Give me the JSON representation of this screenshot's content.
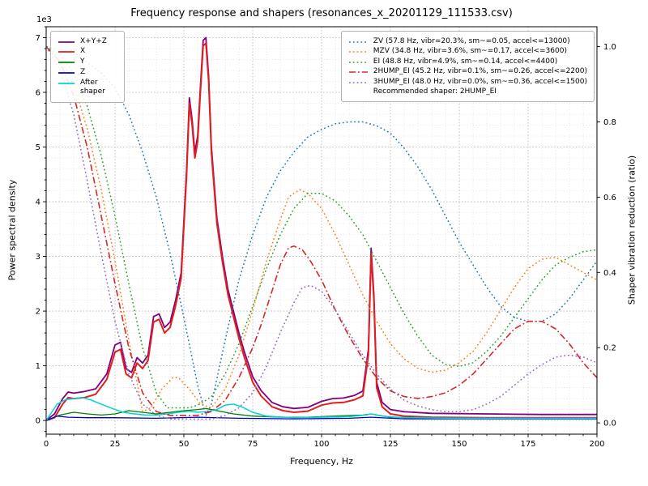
{
  "figure": {
    "title": "Frequency response and shapers (resonances_x_20201129_111533.csv)",
    "xlabel": "Frequency, Hz",
    "ylabel_left": "Power spectral density",
    "ylabel_right": "Shaper vibration reduction (ratio)",
    "offset_label": "1e3"
  },
  "chart_data": {
    "type": "line",
    "title": "Frequency response and shapers (resonances_x_20201129_111533.csv)",
    "xlabel": "Frequency, Hz",
    "ylabel": "Power spectral density",
    "ylabel_right": "Shaper vibration reduction (ratio)",
    "xlim": [
      0,
      200
    ],
    "ylim_left": [
      -250,
      7200
    ],
    "ylim_right": [
      -0.03,
      1.053
    ],
    "xticks": {
      "values": [
        0,
        25,
        50,
        75,
        100,
        125,
        150,
        175,
        200
      ],
      "labels": [
        "0",
        "25",
        "50",
        "75",
        "100",
        "125",
        "150",
        "175",
        "200"
      ]
    },
    "yticks_left": {
      "values": [
        0,
        1000,
        2000,
        3000,
        4000,
        5000,
        6000,
        7000
      ],
      "labels": [
        "0",
        "1",
        "2",
        "3",
        "4",
        "5",
        "6",
        "7"
      ],
      "scale_label": "1e3"
    },
    "yticks_right": {
      "values": [
        0,
        0.2,
        0.4,
        0.6,
        0.8,
        1.0
      ],
      "labels": [
        "0.0",
        "0.2",
        "0.4",
        "0.6",
        "0.8",
        "1.0"
      ]
    },
    "grid": {
      "major": true,
      "minor": true,
      "x_minor_step": 5,
      "y_minor_step": 200
    },
    "annotation": "Recommended shaper: 2HUMP_EI",
    "psd_series": [
      {
        "name": "x-y-z",
        "label": "X+Y+Z",
        "color": "#800080",
        "style": "solid",
        "width": 1.8,
        "axis": "left",
        "x": [
          0,
          3,
          6,
          8,
          10,
          14,
          18,
          22,
          25,
          27,
          29,
          31,
          33,
          35,
          37,
          39,
          41,
          43,
          45,
          47,
          49,
          51,
          52,
          53,
          54,
          55,
          56,
          57,
          58,
          59,
          60,
          62,
          64,
          66,
          68,
          70,
          72,
          75,
          78,
          82,
          86,
          90,
          95,
          100,
          104,
          108,
          112,
          115,
          117,
          118,
          119,
          120,
          122,
          125,
          130,
          140,
          160,
          180,
          200
        ],
        "y": [
          0,
          120,
          400,
          520,
          500,
          530,
          580,
          850,
          1380,
          1430,
          950,
          880,
          1150,
          1050,
          1200,
          1900,
          1950,
          1700,
          1800,
          2200,
          2700,
          4600,
          5900,
          5500,
          4900,
          5200,
          6100,
          6950,
          7000,
          6300,
          5000,
          3700,
          3000,
          2400,
          2000,
          1600,
          1250,
          800,
          550,
          330,
          250,
          220,
          240,
          350,
          400,
          410,
          460,
          540,
          1300,
          3150,
          2300,
          700,
          330,
          200,
          160,
          130,
          120,
          110,
          110
        ]
      },
      {
        "name": "x",
        "label": "X",
        "color": "#e02020",
        "style": "solid",
        "width": 2,
        "axis": "left",
        "x": [
          0,
          3,
          6,
          8,
          10,
          14,
          18,
          22,
          25,
          27,
          29,
          31,
          33,
          35,
          37,
          39,
          41,
          43,
          45,
          47,
          49,
          51,
          52,
          53,
          54,
          55,
          56,
          57,
          58,
          59,
          60,
          62,
          64,
          66,
          68,
          70,
          72,
          75,
          78,
          82,
          86,
          90,
          95,
          100,
          104,
          108,
          112,
          115,
          117,
          118,
          119,
          120,
          122,
          125,
          130,
          140,
          160,
          180,
          200
        ],
        "y": [
          0,
          50,
          300,
          420,
          400,
          420,
          480,
          750,
          1250,
          1300,
          850,
          780,
          1050,
          950,
          1100,
          1800,
          1850,
          1600,
          1700,
          2100,
          2600,
          4500,
          5800,
          5400,
          4800,
          5100,
          6000,
          6850,
          6900,
          6200,
          4900,
          3600,
          2900,
          2300,
          1900,
          1500,
          1150,
          700,
          450,
          250,
          180,
          150,
          170,
          280,
          320,
          330,
          380,
          450,
          1200,
          3050,
          2200,
          600,
          250,
          120,
          80,
          60,
          50,
          50,
          50
        ]
      },
      {
        "name": "y",
        "label": "Y",
        "color": "#008000",
        "style": "solid",
        "width": 1.3,
        "axis": "left",
        "x": [
          0,
          5,
          10,
          15,
          20,
          25,
          30,
          35,
          40,
          45,
          50,
          55,
          58,
          62,
          68,
          75,
          85,
          95,
          105,
          115,
          118,
          125,
          140,
          160,
          180,
          200
        ],
        "y": [
          0,
          100,
          150,
          120,
          100,
          120,
          180,
          150,
          120,
          150,
          180,
          200,
          220,
          180,
          120,
          80,
          60,
          60,
          80,
          100,
          120,
          60,
          50,
          40,
          40,
          40
        ]
      },
      {
        "name": "z",
        "label": "Z",
        "color": "#0000cc",
        "style": "solid",
        "width": 1.3,
        "axis": "left",
        "x": [
          0,
          4,
          8,
          15,
          25,
          40,
          55,
          70,
          90,
          110,
          118,
          130,
          160,
          200
        ],
        "y": [
          0,
          80,
          60,
          50,
          50,
          40,
          60,
          40,
          30,
          40,
          60,
          30,
          30,
          30
        ]
      },
      {
        "name": "after-shaper",
        "label": "After shaper",
        "color": "#00d5d5",
        "style": "solid",
        "width": 1.5,
        "axis": "left",
        "x": [
          0,
          4,
          7,
          10,
          13,
          16,
          20,
          24,
          28,
          32,
          36,
          40,
          44,
          48,
          52,
          55,
          58,
          62,
          65,
          68,
          71,
          75,
          80,
          90,
          100,
          110,
          116,
          118,
          122,
          130,
          150,
          175,
          200
        ],
        "y": [
          0,
          300,
          380,
          400,
          420,
          380,
          300,
          220,
          150,
          120,
          100,
          100,
          120,
          150,
          170,
          150,
          160,
          200,
          280,
          300,
          250,
          150,
          80,
          50,
          60,
          70,
          100,
          120,
          80,
          50,
          40,
          40,
          40
        ]
      }
    ],
    "shaper_series": [
      {
        "name": "zv",
        "label": "ZV (57.8 Hz, vibr=20.3%, sm~=0.05, accel<=13000)",
        "color": "#1f77b4",
        "style": "dotted",
        "width": 1.5,
        "axis": "right",
        "x": [
          0,
          10,
          20,
          25,
          30,
          35,
          40,
          45,
          50,
          55,
          58,
          60,
          65,
          70,
          75,
          80,
          85,
          90,
          95,
          100,
          105,
          110,
          115,
          120,
          125,
          130,
          135,
          140,
          145,
          150,
          155,
          160,
          165,
          170,
          175,
          180,
          185,
          190,
          195,
          200
        ],
        "y": [
          1.0,
          0.985,
          0.93,
          0.89,
          0.82,
          0.72,
          0.6,
          0.45,
          0.28,
          0.1,
          0.02,
          0.05,
          0.22,
          0.38,
          0.5,
          0.6,
          0.67,
          0.72,
          0.76,
          0.78,
          0.795,
          0.8,
          0.8,
          0.79,
          0.77,
          0.73,
          0.68,
          0.62,
          0.55,
          0.48,
          0.42,
          0.36,
          0.31,
          0.28,
          0.27,
          0.27,
          0.29,
          0.33,
          0.38,
          0.43
        ]
      },
      {
        "name": "mzv",
        "label": "MZV (34.8 Hz, vibr=3.6%, sm~=0.17, accel<=3600)",
        "color": "#ff7f0e",
        "style": "dotted",
        "width": 1.5,
        "axis": "right",
        "x": [
          0,
          5,
          10,
          15,
          20,
          25,
          30,
          35,
          38,
          42,
          46,
          48,
          52,
          56,
          60,
          65,
          70,
          75,
          80,
          85,
          88,
          92,
          95,
          100,
          105,
          110,
          115,
          120,
          125,
          130,
          135,
          140,
          145,
          150,
          155,
          160,
          165,
          170,
          175,
          180,
          185,
          190,
          195,
          200
        ],
        "y": [
          1.0,
          0.97,
          0.9,
          0.78,
          0.62,
          0.43,
          0.22,
          0.03,
          0.04,
          0.09,
          0.12,
          0.12,
          0.09,
          0.05,
          0.04,
          0.09,
          0.18,
          0.3,
          0.43,
          0.54,
          0.6,
          0.62,
          0.61,
          0.57,
          0.5,
          0.42,
          0.34,
          0.27,
          0.21,
          0.17,
          0.145,
          0.135,
          0.14,
          0.16,
          0.19,
          0.24,
          0.3,
          0.36,
          0.41,
          0.435,
          0.44,
          0.42,
          0.4,
          0.38
        ]
      },
      {
        "name": "ei",
        "label": "EI (48.8 Hz, vibr=4.9%, sm~=0.14, accel<=4400)",
        "color": "#2ca02c",
        "style": "dotted",
        "width": 1.5,
        "axis": "right",
        "x": [
          0,
          5,
          10,
          15,
          20,
          25,
          30,
          35,
          40,
          44,
          48,
          52,
          56,
          60,
          65,
          70,
          75,
          80,
          85,
          90,
          95,
          100,
          105,
          110,
          115,
          120,
          125,
          130,
          135,
          140,
          145,
          150,
          155,
          160,
          165,
          170,
          175,
          180,
          185,
          190,
          195,
          200
        ],
        "y": [
          1.0,
          0.98,
          0.93,
          0.84,
          0.71,
          0.55,
          0.37,
          0.2,
          0.08,
          0.04,
          0.04,
          0.04,
          0.05,
          0.07,
          0.13,
          0.21,
          0.31,
          0.41,
          0.5,
          0.57,
          0.61,
          0.61,
          0.59,
          0.55,
          0.5,
          0.43,
          0.36,
          0.29,
          0.23,
          0.18,
          0.155,
          0.15,
          0.16,
          0.19,
          0.23,
          0.28,
          0.33,
          0.38,
          0.42,
          0.44,
          0.455,
          0.46
        ]
      },
      {
        "name": "2hump-ei",
        "label": "2HUMP_EI (45.2 Hz, vibr=0.1%, sm~=0.26, accel<=2200)",
        "color": "#d62728",
        "style": "dashdot",
        "width": 1.6,
        "axis": "right",
        "x": [
          0,
          5,
          10,
          15,
          20,
          25,
          30,
          35,
          40,
          45,
          50,
          55,
          60,
          65,
          70,
          75,
          78,
          82,
          85,
          88,
          90,
          93,
          96,
          100,
          105,
          110,
          115,
          120,
          125,
          130,
          135,
          140,
          145,
          150,
          155,
          160,
          165,
          170,
          175,
          180,
          185,
          190,
          195,
          200
        ],
        "y": [
          1.0,
          0.96,
          0.87,
          0.73,
          0.55,
          0.37,
          0.2,
          0.08,
          0.03,
          0.02,
          0.02,
          0.02,
          0.03,
          0.06,
          0.12,
          0.2,
          0.26,
          0.35,
          0.42,
          0.465,
          0.47,
          0.46,
          0.43,
          0.38,
          0.3,
          0.23,
          0.17,
          0.12,
          0.085,
          0.07,
          0.065,
          0.07,
          0.08,
          0.1,
          0.13,
          0.17,
          0.21,
          0.25,
          0.27,
          0.27,
          0.25,
          0.21,
          0.16,
          0.12
        ]
      },
      {
        "name": "3hump-ei",
        "label": "3HUMP_EI (48.0 Hz, vibr=0.0%, sm~=0.36, accel<=1500)",
        "color": "#9467bd",
        "style": "dotted",
        "width": 1.5,
        "axis": "right",
        "x": [
          0,
          5,
          10,
          15,
          20,
          25,
          30,
          35,
          40,
          45,
          50,
          55,
          60,
          65,
          70,
          75,
          80,
          85,
          90,
          93,
          96,
          100,
          105,
          110,
          115,
          120,
          125,
          130,
          135,
          140,
          145,
          150,
          155,
          160,
          165,
          170,
          175,
          180,
          185,
          190,
          195,
          200
        ],
        "y": [
          1.0,
          0.94,
          0.82,
          0.64,
          0.45,
          0.27,
          0.13,
          0.05,
          0.02,
          0.01,
          0.01,
          0.01,
          0.01,
          0.02,
          0.04,
          0.08,
          0.15,
          0.24,
          0.32,
          0.36,
          0.365,
          0.35,
          0.3,
          0.24,
          0.18,
          0.13,
          0.09,
          0.06,
          0.045,
          0.035,
          0.03,
          0.03,
          0.035,
          0.05,
          0.07,
          0.1,
          0.13,
          0.155,
          0.175,
          0.18,
          0.175,
          0.16
        ]
      }
    ]
  }
}
